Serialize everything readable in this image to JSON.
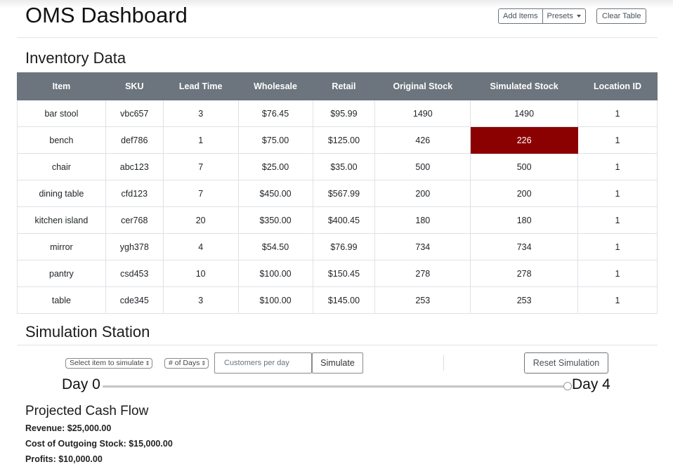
{
  "header": {
    "title": "OMS Dashboard",
    "add_items_label": "Add Items",
    "presets_label": "Presets",
    "clear_table_label": "Clear Table"
  },
  "inventory": {
    "title": "Inventory Data",
    "columns": [
      "Item",
      "SKU",
      "Lead Time",
      "Wholesale",
      "Retail",
      "Original Stock",
      "Simulated Stock",
      "Location ID"
    ],
    "rows": [
      [
        "bar stool",
        "vbc657",
        "3",
        "$76.45",
        "$95.99",
        "1490",
        "1490",
        "1"
      ],
      [
        "bench",
        "def786",
        "1",
        "$75.00",
        "$125.00",
        "426",
        "226",
        "1"
      ],
      [
        "chair",
        "abc123",
        "7",
        "$25.00",
        "$35.00",
        "500",
        "500",
        "1"
      ],
      [
        "dining table",
        "cfd123",
        "7",
        "$450.00",
        "$567.99",
        "200",
        "200",
        "1"
      ],
      [
        "kitchen island",
        "cer768",
        "20",
        "$350.00",
        "$400.45",
        "180",
        "180",
        "1"
      ],
      [
        "mirror",
        "ygh378",
        "4",
        "$54.50",
        "$76.99",
        "734",
        "734",
        "1"
      ],
      [
        "pantry",
        "csd453",
        "10",
        "$100.00",
        "$150.45",
        "278",
        "278",
        "1"
      ],
      [
        "table",
        "cde345",
        "3",
        "$100.00",
        "$145.00",
        "253",
        "253",
        "1"
      ]
    ],
    "highlight_color": "#8b0000"
  },
  "simulation": {
    "title": "Simulation Station",
    "item_select": "Select item to simulate",
    "days_select": "# of Days",
    "customers_placeholder": "Customers per day",
    "simulate_label": "Simulate",
    "reset_label": "Reset Simulation",
    "day_start_label": "Day 0",
    "day_end_label": "Day 4",
    "slider_value_fraction": 1.0
  },
  "cash_flow": {
    "title": "Projected Cash Flow",
    "revenue": "Revenue: $25,000.00",
    "cost": "Cost of Outgoing Stock: $15,000.00",
    "profits": "Profits: $10,000.00"
  }
}
